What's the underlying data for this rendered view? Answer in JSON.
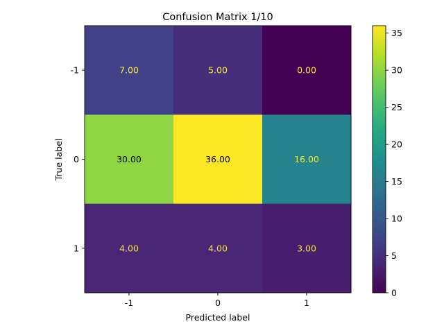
{
  "chart_data": {
    "type": "heatmap",
    "title": "Confusion Matrix 1/10",
    "xlabel": "Predicted label",
    "ylabel": "True label",
    "x_categories": [
      "-1",
      "0",
      "1"
    ],
    "y_categories": [
      "-1",
      "0",
      "1"
    ],
    "values": [
      [
        7.0,
        5.0,
        0.0
      ],
      [
        30.0,
        36.0,
        16.0
      ],
      [
        4.0,
        4.0,
        3.0
      ]
    ],
    "value_labels": [
      [
        "7.00",
        "5.00",
        "0.00"
      ],
      [
        "30.00",
        "36.00",
        "16.00"
      ],
      [
        "4.00",
        "4.00",
        "3.00"
      ]
    ],
    "colormap": "viridis",
    "clim": [
      0,
      36
    ],
    "colorbar_ticks": [
      "0",
      "5",
      "10",
      "15",
      "20",
      "25",
      "30",
      "35"
    ],
    "colorbar_tick_values": [
      0,
      5,
      10,
      15,
      20,
      25,
      30,
      35
    ],
    "text_colors": {
      "on_dark": "#fde725",
      "on_light": "#000000"
    }
  }
}
